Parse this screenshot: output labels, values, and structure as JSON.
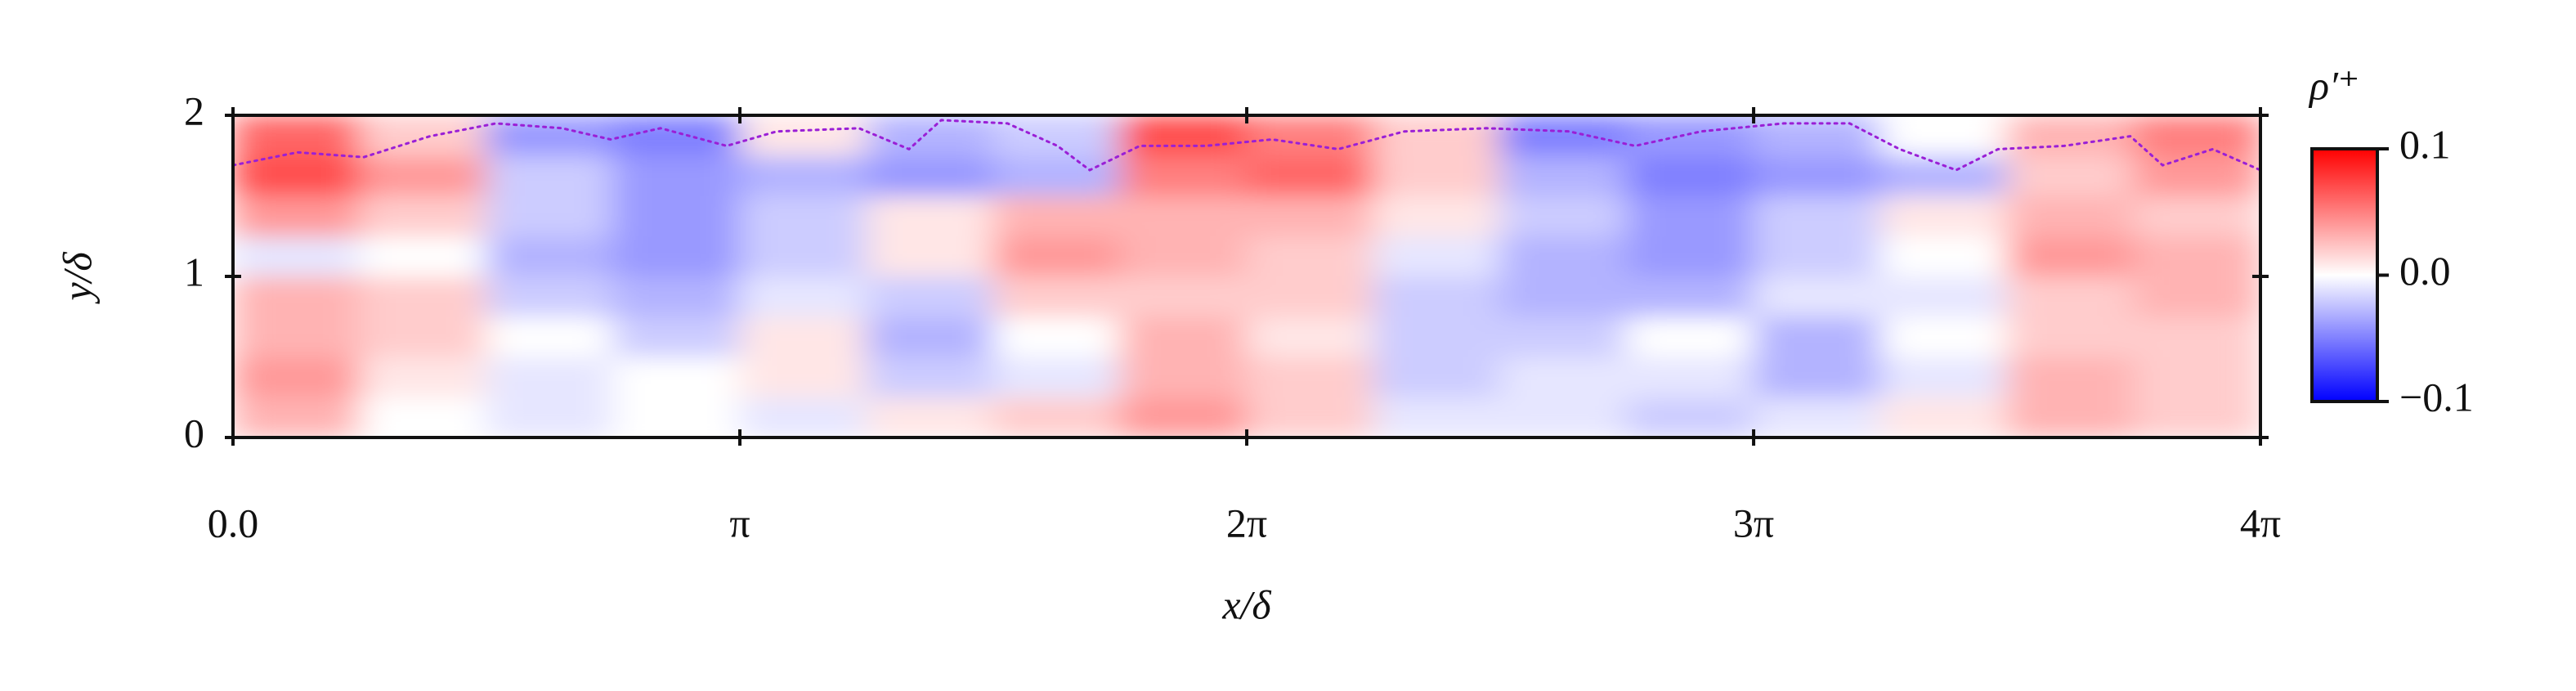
{
  "chart_data": {
    "type": "heatmap",
    "xlabel": "x/δ",
    "ylabel": "y/δ",
    "xlim": [
      0,
      12.566
    ],
    "ylim": [
      0,
      2
    ],
    "xticks": [
      {
        "value": 0,
        "label": "0.0"
      },
      {
        "value": 3.1416,
        "label": "π"
      },
      {
        "value": 6.2832,
        "label": "2π"
      },
      {
        "value": 9.4248,
        "label": "3π"
      },
      {
        "value": 12.566,
        "label": "4π"
      }
    ],
    "yticks": [
      0,
      1,
      2
    ],
    "xbins": [
      0,
      0.785,
      1.571,
      2.356,
      3.142,
      3.927,
      4.712,
      5.498,
      6.283,
      7.069,
      7.854,
      8.639,
      9.425,
      10.21,
      10.996,
      11.781,
      12.566
    ],
    "ybins": [
      0,
      0.25,
      0.5,
      0.75,
      1,
      1.25,
      1.5,
      1.75,
      2
    ],
    "z": [
      [
        0.03,
        0,
        -0.01,
        0,
        -0.01,
        0.01,
        0.02,
        0.04,
        0.02,
        -0.01,
        -0.01,
        -0.02,
        -0.01,
        0.01,
        0.03,
        0.02
      ],
      [
        0.04,
        0.01,
        -0.01,
        0,
        0.01,
        -0.02,
        -0.01,
        0.03,
        0.02,
        -0.02,
        -0.01,
        -0.01,
        -0.03,
        -0.01,
        0.03,
        0.02
      ],
      [
        0.03,
        0.02,
        0,
        -0.02,
        0.01,
        -0.03,
        0,
        0.03,
        0.01,
        -0.02,
        -0.02,
        0,
        -0.03,
        0,
        0.02,
        0.02
      ],
      [
        0.03,
        0.02,
        -0.02,
        -0.03,
        -0.01,
        -0.02,
        0.02,
        0.02,
        0.02,
        -0.02,
        -0.03,
        -0.03,
        -0.01,
        -0.01,
        0.02,
        0.03
      ],
      [
        -0.01,
        0,
        -0.03,
        -0.04,
        -0.02,
        0.01,
        0.04,
        0.03,
        0.02,
        -0.01,
        -0.03,
        -0.04,
        -0.02,
        0,
        0.04,
        0.03
      ],
      [
        0.04,
        0.02,
        -0.02,
        -0.04,
        -0.02,
        0.01,
        0.03,
        0.03,
        0.03,
        0.01,
        -0.02,
        -0.04,
        -0.02,
        0.01,
        0.03,
        0.02
      ],
      [
        0.07,
        0.04,
        -0.02,
        -0.04,
        -0.03,
        -0.04,
        -0.03,
        0.05,
        0.06,
        0.02,
        -0.03,
        -0.05,
        -0.04,
        -0.03,
        0.02,
        0.04
      ],
      [
        0.06,
        0.02,
        -0.04,
        -0.05,
        0.01,
        -0.03,
        -0.02,
        0.07,
        0.05,
        0.02,
        -0.05,
        -0.04,
        -0.03,
        0,
        0.03,
        0.05
      ]
    ],
    "cmap": [
      "#0000ff",
      "#ffffff",
      "#ff0000"
    ],
    "colorbar": {
      "title": "ρ′⁺",
      "lim": [
        -0.1,
        0.1
      ],
      "ticks": [
        {
          "value": -0.1,
          "label": "−0.1"
        },
        {
          "value": 0,
          "label": "0.0"
        },
        0.1
      ]
    },
    "line": {
      "color": "#9a1fd6",
      "x": [
        0,
        0.4,
        0.81,
        1.22,
        1.63,
        2.04,
        2.34,
        2.65,
        3.06,
        3.37,
        3.88,
        4.19,
        4.39,
        4.8,
        5.11,
        5.31,
        5.62,
        6.03,
        6.44,
        6.85,
        7.26,
        7.77,
        8.28,
        8.69,
        9.1,
        9.61,
        10.02,
        10.33,
        10.68,
        10.94,
        11.35,
        11.76,
        11.96,
        12.27,
        12.566
      ],
      "y": [
        1.69,
        1.77,
        1.74,
        1.87,
        1.95,
        1.92,
        1.85,
        1.92,
        1.81,
        1.9,
        1.92,
        1.79,
        1.97,
        1.95,
        1.81,
        1.66,
        1.81,
        1.81,
        1.85,
        1.79,
        1.9,
        1.92,
        1.9,
        1.81,
        1.9,
        1.95,
        1.95,
        1.79,
        1.66,
        1.79,
        1.81,
        1.87,
        1.69,
        1.79,
        1.66
      ]
    }
  }
}
